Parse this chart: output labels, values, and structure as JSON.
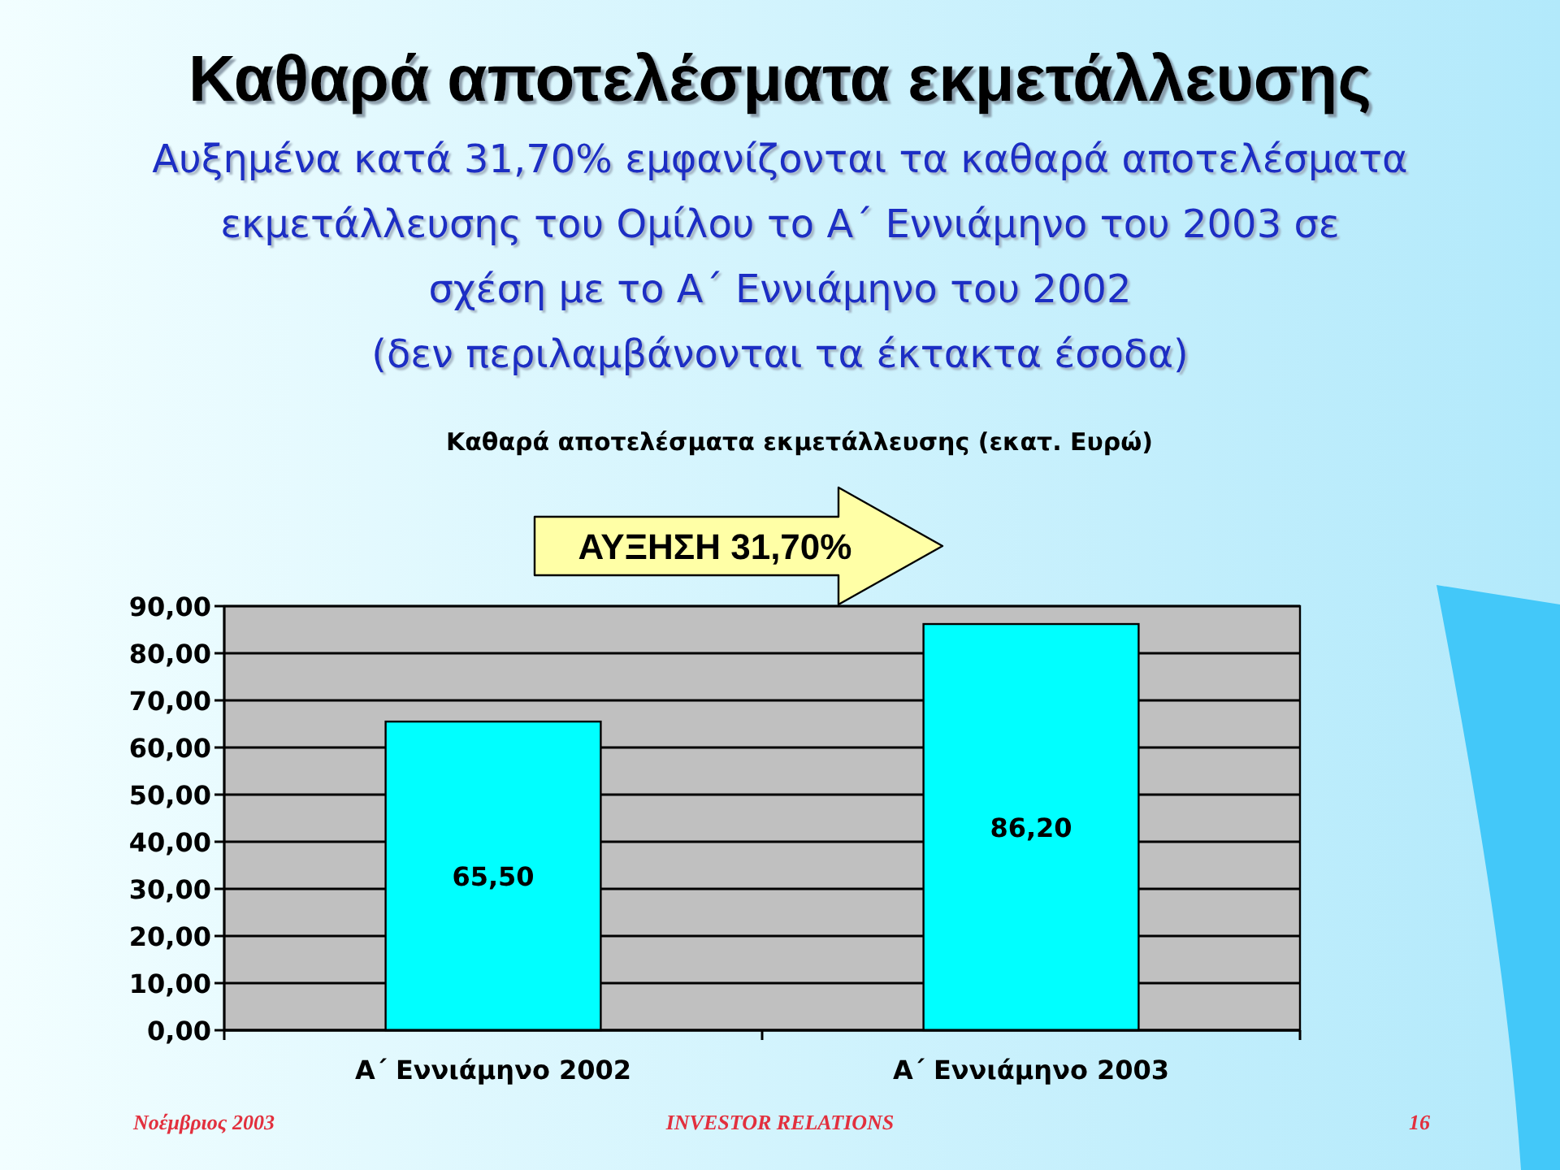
{
  "chart_data": {
    "type": "bar",
    "title": "Καθαρά αποτελέσματα εκμετάλλευσης",
    "subtitle": "Αυξημένα κατά 31,70% εμφανίζονται τα καθαρά αποτελέσματα\nεκμετάλλευσης του Ομίλου το Α΄ Εννιάμηνο του 2003 σε\nσχέση με το Α΄ Εννιάμηνο του 2002\n(δεν περιλαμβάνονται τα έκτακτα έσοδα)",
    "categories": [
      "Α΄ Εννιάμηνο 2002",
      "Α΄ Εννιάμηνο 2003"
    ],
    "values": [
      65.5,
      86.2
    ],
    "value_labels": [
      "65,50",
      "86,20"
    ],
    "color": "#00ffff",
    "ylim": [
      0,
      90
    ],
    "yticks": [
      {
        "value": 0,
        "label": "0,00"
      },
      {
        "value": 10,
        "label": "10,00"
      },
      {
        "value": 20,
        "label": "20,00"
      },
      {
        "value": 30,
        "label": "30,00"
      },
      {
        "value": 40,
        "label": "40,00"
      },
      {
        "value": 50,
        "label": "50,00"
      },
      {
        "value": 60,
        "label": "60,00"
      },
      {
        "value": 70,
        "label": "70,00"
      },
      {
        "value": 80,
        "label": "80,00"
      },
      {
        "value": 90,
        "label": "90,00"
      }
    ],
    "grid": true,
    "annotations": [
      "Καθαρά αποτελέσματα εκμετάλλευσης (εκατ. Ευρώ)",
      "ΑΥΞΗΣΗ 31,70%",
      "Νοέμβριος 2003",
      "INVESTOR RELATIONS",
      "16"
    ]
  }
}
